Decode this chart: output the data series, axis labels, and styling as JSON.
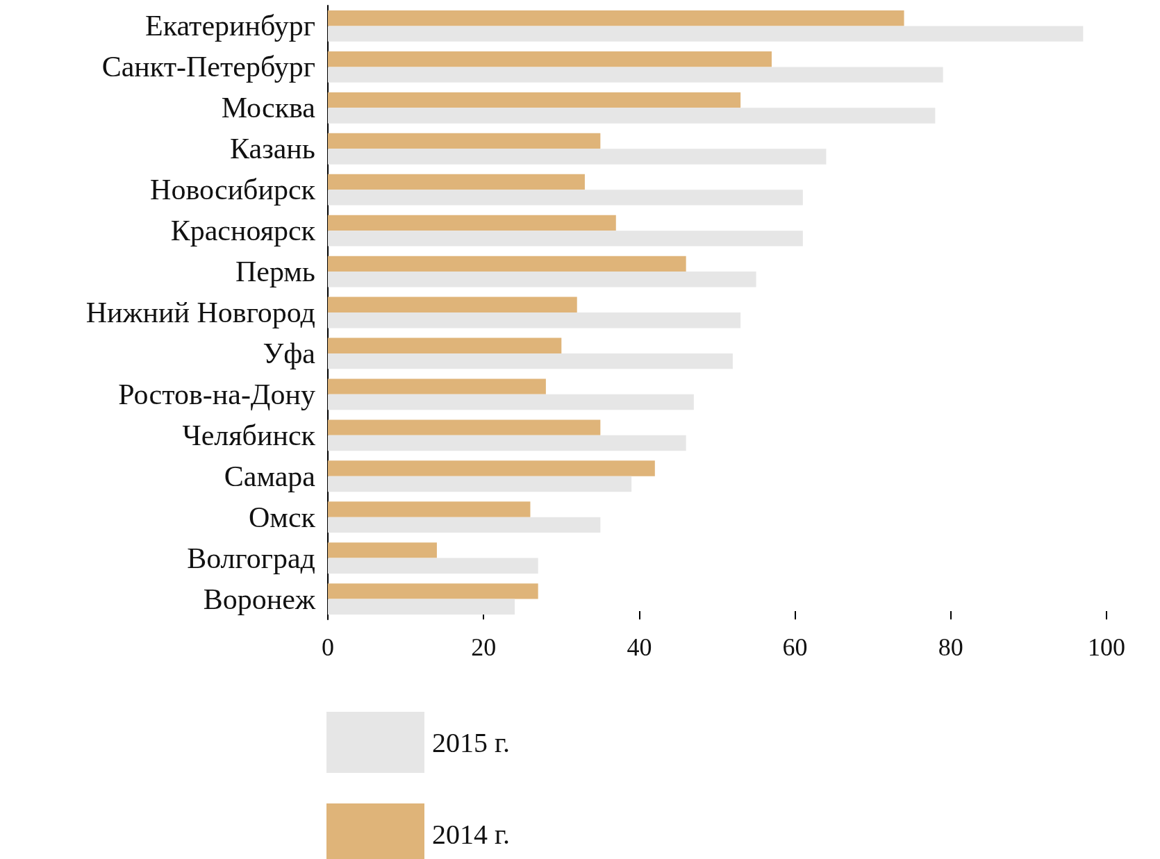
{
  "chart_data": {
    "type": "bar",
    "orientation": "horizontal",
    "categories": [
      "Екатеринбург",
      "Санкт-Петербург",
      "Москва",
      "Казань",
      "Новосибирск",
      "Красноярск",
      "Пермь",
      "Нижний Новгород",
      "Уфа",
      "Ростов-на-Дону",
      "Челябинск",
      "Самара",
      "Омск",
      "Волгоград",
      "Воронеж"
    ],
    "series": [
      {
        "name": "2015 г.",
        "color": "#e6e6e6",
        "values": [
          97,
          79,
          78,
          64,
          61,
          61,
          55,
          53,
          52,
          47,
          46,
          39,
          35,
          27,
          24
        ]
      },
      {
        "name": "2014 г.",
        "color": "#dfb479",
        "values": [
          74,
          57,
          53,
          35,
          33,
          37,
          46,
          32,
          30,
          28,
          35,
          42,
          26,
          14,
          27
        ]
      }
    ],
    "xlim": [
      0,
      100
    ],
    "xticks": [
      0,
      20,
      40,
      60,
      80,
      100
    ],
    "grid": false,
    "legend": "bottom"
  }
}
